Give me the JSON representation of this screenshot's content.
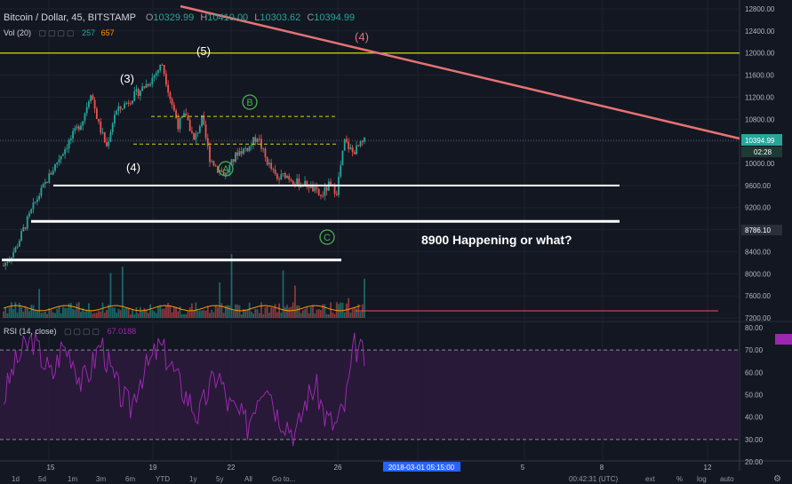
{
  "header": {
    "symbol": "Bitcoin / Dollar, 45, BITSTAMP",
    "ohlc": {
      "o_label": "O",
      "o": "10329.99",
      "h_label": "H",
      "h": "10410.00",
      "l_label": "L",
      "l": "10303.62",
      "c_label": "C",
      "c": "10394.99"
    },
    "vol_label": "Vol (20)",
    "vol_a": "257",
    "vol_b": "657",
    "rsi_label": "RSI (14, close)",
    "rsi_value": "67.0188"
  },
  "price_badge": {
    "price": "10394.99",
    "countdown": "02:28"
  },
  "marker_badge": "8786.10",
  "cursor_date": "2018-03-01 05:15:00",
  "annotation": "8900 Happening or what?",
  "wave_labels": [
    "(3)",
    "(4)",
    "(5)",
    "(4)"
  ],
  "circle_labels": [
    "A",
    "B",
    "C"
  ],
  "toolbar": {
    "ranges": [
      "1d",
      "5d",
      "1m",
      "3m",
      "6m",
      "YTD",
      "1y",
      "5y",
      "All",
      "Go to..."
    ],
    "clock": "00:42:31 (UTC)",
    "options": [
      "ext",
      "%",
      "log",
      "auto"
    ]
  },
  "colors": {
    "background": "#131722",
    "up": "#26a69a",
    "down": "#ef5350",
    "rsi": "#9c27b0",
    "trendline": "#e57373",
    "level": "#d4d41a",
    "support": "#ffffff",
    "circle": "#4caf50"
  },
  "chart_data": [
    {
      "type": "candlestick",
      "ylim": [
        7200,
        12800
      ],
      "y_ticks": [
        12800,
        12400,
        12000,
        11600,
        11200,
        10800,
        10400,
        10000,
        9600,
        9200,
        8800,
        8400,
        8000,
        7600,
        7200
      ],
      "x_ticks": [
        "15",
        "19",
        "22",
        "26",
        "2018-03-01 05:15:00",
        "5",
        "8",
        "12"
      ],
      "approx_path": [
        {
          "t": 0,
          "price": 8150
        },
        {
          "t": 6,
          "price": 8450
        },
        {
          "t": 10,
          "price": 8800
        },
        {
          "t": 16,
          "price": 9300
        },
        {
          "t": 22,
          "price": 9700
        },
        {
          "t": 28,
          "price": 10100
        },
        {
          "t": 34,
          "price": 10450
        },
        {
          "t": 40,
          "price": 10800
        },
        {
          "t": 44,
          "price": 11300
        },
        {
          "t": 48,
          "price": 10700
        },
        {
          "t": 52,
          "price": 10300
        },
        {
          "t": 56,
          "price": 10900
        },
        {
          "t": 62,
          "price": 11100
        },
        {
          "t": 68,
          "price": 11300
        },
        {
          "t": 74,
          "price": 11500
        },
        {
          "t": 80,
          "price": 11800
        },
        {
          "t": 84,
          "price": 11200
        },
        {
          "t": 88,
          "price": 10700
        },
        {
          "t": 92,
          "price": 10900
        },
        {
          "t": 96,
          "price": 10400
        },
        {
          "t": 100,
          "price": 10800
        },
        {
          "t": 104,
          "price": 10100
        },
        {
          "t": 108,
          "price": 9900
        },
        {
          "t": 112,
          "price": 9800
        },
        {
          "t": 118,
          "price": 10200
        },
        {
          "t": 124,
          "price": 10300
        },
        {
          "t": 128,
          "price": 10500
        },
        {
          "t": 132,
          "price": 10100
        },
        {
          "t": 138,
          "price": 9700
        },
        {
          "t": 142,
          "price": 9800
        },
        {
          "t": 148,
          "price": 9650
        },
        {
          "t": 154,
          "price": 9600
        },
        {
          "t": 160,
          "price": 9400
        },
        {
          "t": 164,
          "price": 9600
        },
        {
          "t": 168,
          "price": 9500
        },
        {
          "t": 172,
          "price": 10400
        },
        {
          "t": 176,
          "price": 10200
        },
        {
          "t": 182,
          "price": 10395
        }
      ],
      "horizontal_levels": [
        12000,
        10850,
        10350,
        9600,
        8950,
        8250
      ],
      "last_price": 10394.99
    },
    {
      "type": "bar",
      "name": "Vol (20)",
      "values": [
        257,
        657
      ]
    },
    {
      "type": "line",
      "name": "RSI (14, close)",
      "ylim": [
        20,
        80
      ],
      "y_ticks": [
        80,
        70,
        60,
        50,
        40,
        30,
        20
      ],
      "bands": [
        30,
        70
      ],
      "last": 67.0188,
      "approx_values": [
        48,
        62,
        70,
        75,
        66,
        58,
        72,
        68,
        55,
        62,
        74,
        60,
        50,
        44,
        58,
        64,
        72,
        65,
        55,
        48,
        40,
        52,
        60,
        46,
        42,
        36,
        50,
        58,
        42,
        38,
        32,
        48,
        54,
        40,
        36,
        45,
        72,
        67
      ]
    }
  ]
}
